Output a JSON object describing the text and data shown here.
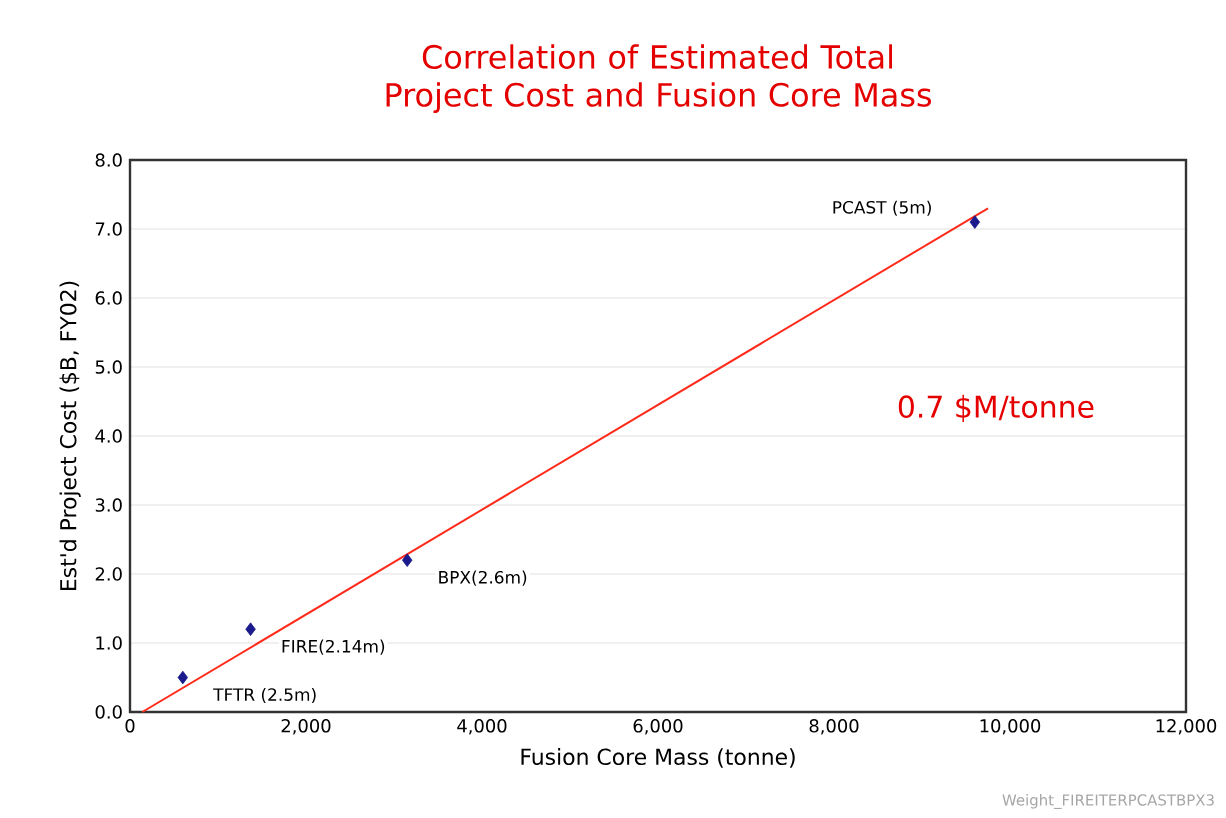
{
  "chart_data": {
    "type": "scatter",
    "title": "Correlation of Estimated Total Project Cost and Fusion Core Mass",
    "xlabel": "Fusion Core Mass (tonne)",
    "ylabel": "Est'd Project Cost ($B, FY02)",
    "xlim": [
      0,
      12000
    ],
    "ylim": [
      0,
      8
    ],
    "xticks": [
      {
        "value": 0,
        "label": "0"
      },
      {
        "value": 2000,
        "label": "2,000"
      },
      {
        "value": 4000,
        "label": "4,000"
      },
      {
        "value": 6000,
        "label": "6,000"
      },
      {
        "value": 8000,
        "label": "8,000"
      },
      {
        "value": 10000,
        "label": "10,000"
      },
      {
        "value": 12000,
        "label": "12,000"
      }
    ],
    "yticks": [
      {
        "value": 0,
        "label": "0.0"
      },
      {
        "value": 1,
        "label": "1.0"
      },
      {
        "value": 2,
        "label": "2.0"
      },
      {
        "value": 3,
        "label": "3.0"
      },
      {
        "value": 4,
        "label": "4.0"
      },
      {
        "value": 5,
        "label": "5.0"
      },
      {
        "value": 6,
        "label": "6.0"
      },
      {
        "value": 7,
        "label": "7.0"
      },
      {
        "value": 8,
        "label": "8.0"
      }
    ],
    "grid": "y",
    "marker": "diamond",
    "series": [
      {
        "color": "#1a1a8c",
        "x": [
          600,
          1370,
          3150,
          9600
        ],
        "values": [
          0.5,
          1.2,
          2.2,
          7.1
        ]
      },
      {
        "type": "line",
        "color": "#ff2a1a",
        "marker": "none",
        "x": [
          140,
          9750
        ],
        "values": [
          0,
          7.3
        ]
      }
    ],
    "annotations": [
      {
        "text": "TFTR (2.5m)",
        "x": 600,
        "y": 0.5
      },
      {
        "text": "FIRE(2.14m)",
        "x": 1370,
        "y": 1.2
      },
      {
        "text": "BPX(2.6m)",
        "x": 3150,
        "y": 2.2
      },
      {
        "text": "PCAST (5m)",
        "x": 9600,
        "y": 7.1
      },
      "0.7  $M/tonne",
      "Weight_FIREITERPCASTBPX3"
    ]
  }
}
